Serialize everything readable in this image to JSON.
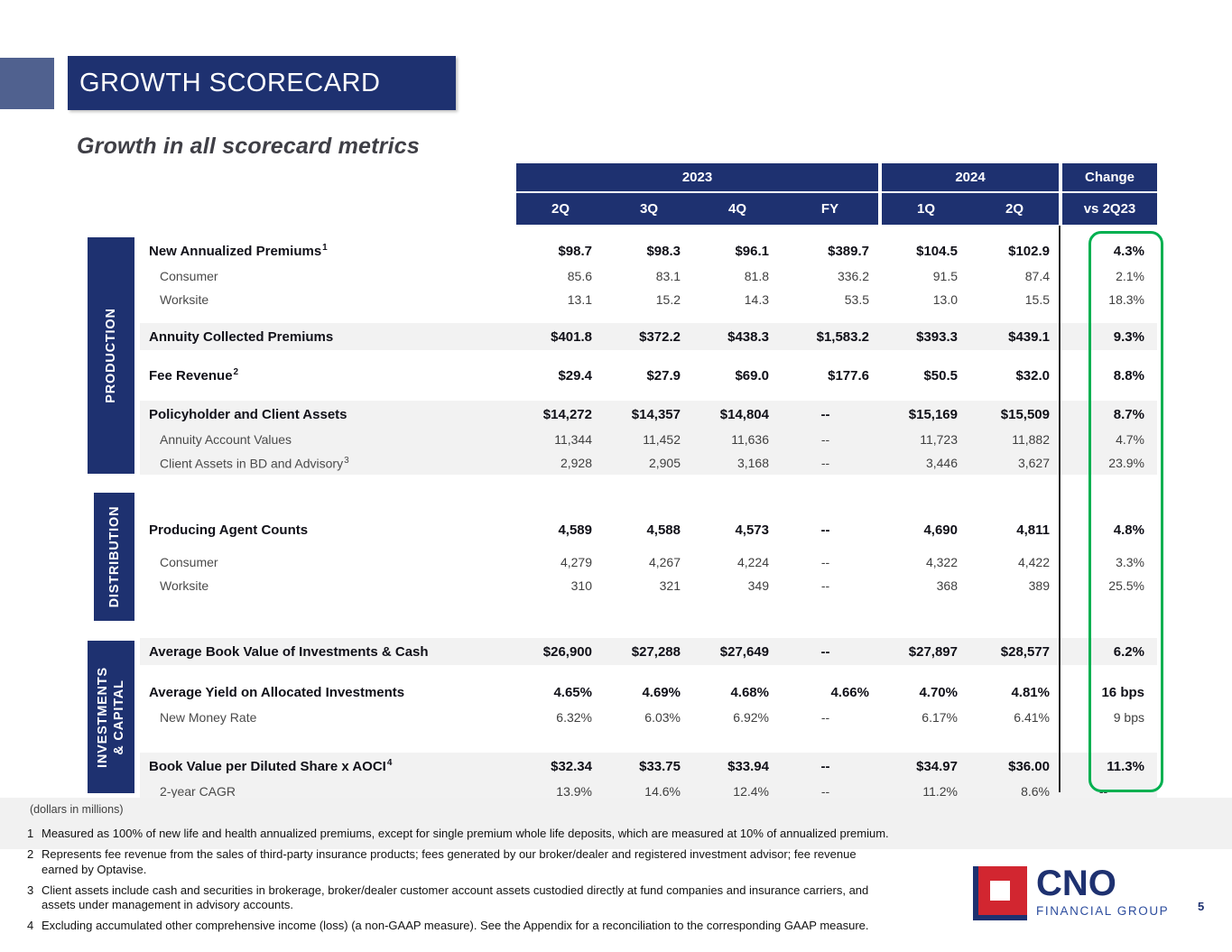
{
  "slide": {
    "title": "GROWTH SCORECARD",
    "subtitle": "Growth in all scorecard metrics",
    "dollars_note": "(dollars in millions)",
    "page_number": "5"
  },
  "colors": {
    "navy": "#1e3170",
    "accent": "#50618f",
    "green": "#00b050",
    "red": "#d22630",
    "shade": "#f2f2f2"
  },
  "table": {
    "year_groups": [
      "2023",
      "2024",
      "Change"
    ],
    "quarters_2023": [
      "2Q",
      "3Q",
      "4Q",
      "FY"
    ],
    "quarters_2024": [
      "1Q",
      "2Q"
    ],
    "change_sub": "vs 2Q23",
    "sections": [
      {
        "name": "PRODUCTION",
        "rows": [
          {
            "label": "New Annualized Premiums",
            "sup": "1",
            "style": "main",
            "shaded": false,
            "spacer": null,
            "values": [
              "$98.7",
              "$98.3",
              "$96.1",
              "$389.7",
              "$104.5",
              "$102.9",
              "4.3%"
            ]
          },
          {
            "label": "Consumer",
            "sup": "",
            "style": "sub",
            "shaded": false,
            "spacer": null,
            "values": [
              "85.6",
              "83.1",
              "81.8",
              "336.2",
              "91.5",
              "87.4",
              "2.1%"
            ]
          },
          {
            "label": "Worksite",
            "sup": "",
            "style": "sub",
            "shaded": false,
            "spacer": null,
            "values": [
              "13.1",
              "15.2",
              "14.3",
              "53.5",
              "13.0",
              "15.5",
              "18.3%"
            ]
          },
          {
            "label": "Annuity Collected Premiums",
            "sup": "",
            "style": "main",
            "shaded": true,
            "spacer": "b",
            "values": [
              "$401.8",
              "$372.2",
              "$438.3",
              "$1,583.2",
              "$393.3",
              "$439.1",
              "9.3%"
            ]
          },
          {
            "label": "Fee Revenue",
            "sup": "2",
            "style": "main",
            "shaded": false,
            "spacer": "b",
            "values": [
              "$29.4",
              "$27.9",
              "$69.0",
              "$177.6",
              "$50.5",
              "$32.0",
              "8.8%"
            ]
          },
          {
            "label": "Policyholder and Client Assets",
            "sup": "",
            "style": "main",
            "shaded": true,
            "spacer": "b",
            "values": [
              "$14,272",
              "$14,357",
              "$14,804",
              "--",
              "$15,169",
              "$15,509",
              "8.7%"
            ]
          },
          {
            "label": "Annuity Account Values",
            "sup": "",
            "style": "sub",
            "shaded": true,
            "spacer": null,
            "values": [
              "11,344",
              "11,452",
              "11,636",
              "--",
              "11,723",
              "11,882",
              "4.7%"
            ]
          },
          {
            "label": "Client Assets in BD and Advisory",
            "sup": "3",
            "style": "sub",
            "shaded": true,
            "spacer": null,
            "values": [
              "2,928",
              "2,905",
              "3,168",
              "--",
              "3,446",
              "3,627",
              "23.9%"
            ]
          }
        ]
      },
      {
        "name": "DISTRIBUTION",
        "rows": [
          {
            "label": "Producing Agent Counts",
            "sup": "",
            "style": "main",
            "shaded": false,
            "spacer": null,
            "values": [
              "4,589",
              "4,588",
              "4,573",
              "--",
              "4,690",
              "4,811",
              "4.8%"
            ]
          },
          {
            "label": "Consumer",
            "sup": "",
            "style": "sub",
            "shaded": false,
            "spacer": "a",
            "values": [
              "4,279",
              "4,267",
              "4,224",
              "--",
              "4,322",
              "4,422",
              "3.3%"
            ]
          },
          {
            "label": "Worksite",
            "sup": "",
            "style": "sub",
            "shaded": false,
            "spacer": null,
            "values": [
              "310",
              "321",
              "349",
              "--",
              "368",
              "389",
              "25.5%"
            ]
          }
        ]
      },
      {
        "name": "INVESTMENTS\n& CAPITAL",
        "rows": [
          {
            "label": "Average Book Value of Investments & Cash",
            "sup": "",
            "style": "main",
            "shaded": true,
            "spacer": null,
            "values": [
              "$26,900",
              "$27,288",
              "$27,649",
              "--",
              "$27,897",
              "$28,577",
              "6.2%"
            ]
          },
          {
            "label": "Average Yield on Allocated Investments",
            "sup": "",
            "style": "main",
            "shaded": false,
            "spacer": "c",
            "values": [
              "4.65%",
              "4.69%",
              "4.68%",
              "4.66%",
              "4.70%",
              "4.81%",
              "16 bps"
            ]
          },
          {
            "label": "New Money Rate",
            "sup": "",
            "style": "sub",
            "shaded": false,
            "spacer": null,
            "values": [
              "6.32%",
              "6.03%",
              "6.92%",
              "--",
              "6.17%",
              "6.41%",
              "9 bps"
            ]
          },
          {
            "label": "Book Value per Diluted Share x AOCI",
            "sup": "4",
            "style": "main",
            "shaded": true,
            "spacer": "d",
            "values": [
              "$32.34",
              "$33.75",
              "$33.94",
              "--",
              "$34.97",
              "$36.00",
              "11.3%"
            ]
          },
          {
            "label": "2-year CAGR",
            "sup": "",
            "style": "sub",
            "shaded": true,
            "spacer": null,
            "values": [
              "13.9%",
              "14.6%",
              "12.4%",
              "--",
              "11.2%",
              "8.6%",
              "--"
            ]
          }
        ]
      }
    ]
  },
  "footnotes": [
    {
      "num": "1",
      "text": "Measured as 100% of new life and health annualized premiums, except for single premium whole life deposits, which are measured at 10% of annualized premium."
    },
    {
      "num": "2",
      "text": "Represents fee revenue from the sales of third-party insurance products; fees generated by our broker/dealer and registered investment advisor; fee revenue earned by Optavise."
    },
    {
      "num": "3",
      "text": "Client assets include cash and securities in brokerage, broker/dealer customer account assets custodied directly at fund companies and insurance carriers, and assets under management in advisory accounts."
    },
    {
      "num": "4",
      "text": "Excluding accumulated other comprehensive income (loss) (a non-GAAP measure). See the Appendix for a reconciliation to the corresponding GAAP measure."
    }
  ],
  "logo": {
    "name": "CNO",
    "subtext": "FINANCIAL GROUP"
  }
}
